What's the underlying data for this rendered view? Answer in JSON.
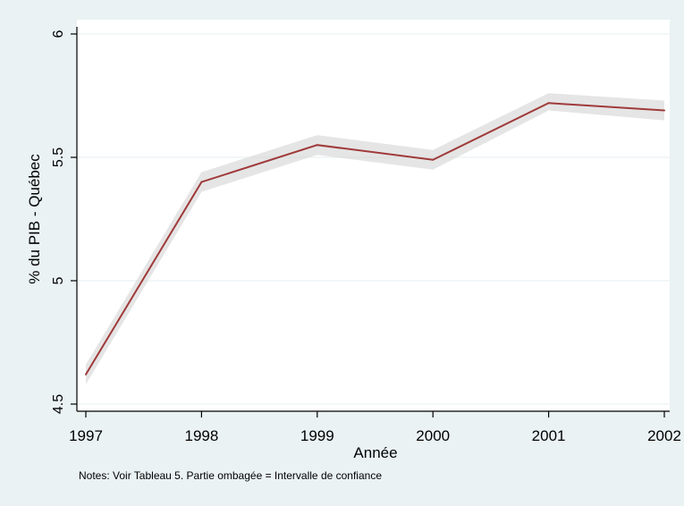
{
  "chart_data": {
    "type": "line",
    "title": "",
    "xlabel": "Année",
    "ylabel": "% du PIB - Québec",
    "note": "Notes: Voir Tableau 5. Partie ombagée = Intervalle de confiance",
    "x": [
      1997,
      1998,
      1999,
      2000,
      2001,
      2002
    ],
    "xlim": [
      1997,
      2002
    ],
    "ylim": [
      4.5,
      6
    ],
    "x_ticks": [
      1997,
      1998,
      1999,
      2000,
      2001,
      2002
    ],
    "x_tick_labels": [
      "1997",
      "1998",
      "1999",
      "2000",
      "2001",
      "2002"
    ],
    "y_ticks": [
      4.5,
      5,
      5.5,
      6
    ],
    "y_tick_labels": [
      "4.5",
      "5",
      "5.5",
      "6"
    ],
    "grid": true,
    "series": [
      {
        "values": [
          4.62,
          5.4,
          5.55,
          5.49,
          5.72,
          5.69
        ],
        "lower": [
          4.58,
          5.36,
          5.51,
          5.45,
          5.69,
          5.65
        ],
        "upper": [
          4.66,
          5.44,
          5.59,
          5.53,
          5.76,
          5.73
        ],
        "color": "#a03a3a",
        "band_color": "#d4d4d4"
      }
    ]
  }
}
